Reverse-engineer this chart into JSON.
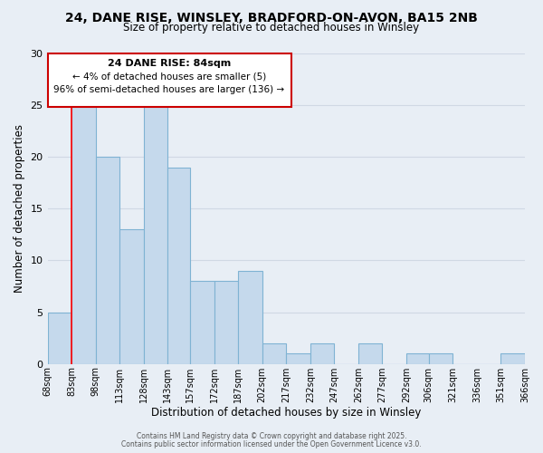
{
  "title": "24, DANE RISE, WINSLEY, BRADFORD-ON-AVON, BA15 2NB",
  "subtitle": "Size of property relative to detached houses in Winsley",
  "xlabel": "Distribution of detached houses by size in Winsley",
  "ylabel": "Number of detached properties",
  "background_color": "#e8eef5",
  "plot_bg_color": "#e8eef5",
  "bar_color": "#c5d9ec",
  "bar_edge_color": "#7fb3d3",
  "grid_color": "#d0d8e4",
  "bin_edges": [
    68,
    83,
    98,
    113,
    128,
    143,
    157,
    172,
    187,
    202,
    217,
    232,
    247,
    262,
    277,
    292,
    306,
    321,
    336,
    351,
    366
  ],
  "counts": [
    5,
    25,
    20,
    13,
    25,
    19,
    8,
    8,
    9,
    2,
    1,
    2,
    0,
    2,
    0,
    1,
    1,
    0,
    0,
    1
  ],
  "tick_labels": [
    "68sqm",
    "83sqm",
    "98sqm",
    "113sqm",
    "128sqm",
    "143sqm",
    "157sqm",
    "172sqm",
    "187sqm",
    "202sqm",
    "217sqm",
    "232sqm",
    "247sqm",
    "262sqm",
    "277sqm",
    "292sqm",
    "306sqm",
    "321sqm",
    "336sqm",
    "351sqm",
    "366sqm"
  ],
  "red_line_x": 83,
  "ylim": [
    0,
    30
  ],
  "yticks": [
    0,
    5,
    10,
    15,
    20,
    25,
    30
  ],
  "annotation_title": "24 DANE RISE: 84sqm",
  "annotation_line1": "← 4% of detached houses are smaller (5)",
  "annotation_line2": "96% of semi-detached houses are larger (136) →",
  "annotation_box_color": "#ffffff",
  "annotation_box_edge_color": "#cc0000",
  "footer_line1": "Contains HM Land Registry data © Crown copyright and database right 2025.",
  "footer_line2": "Contains public sector information licensed under the Open Government Licence v3.0."
}
